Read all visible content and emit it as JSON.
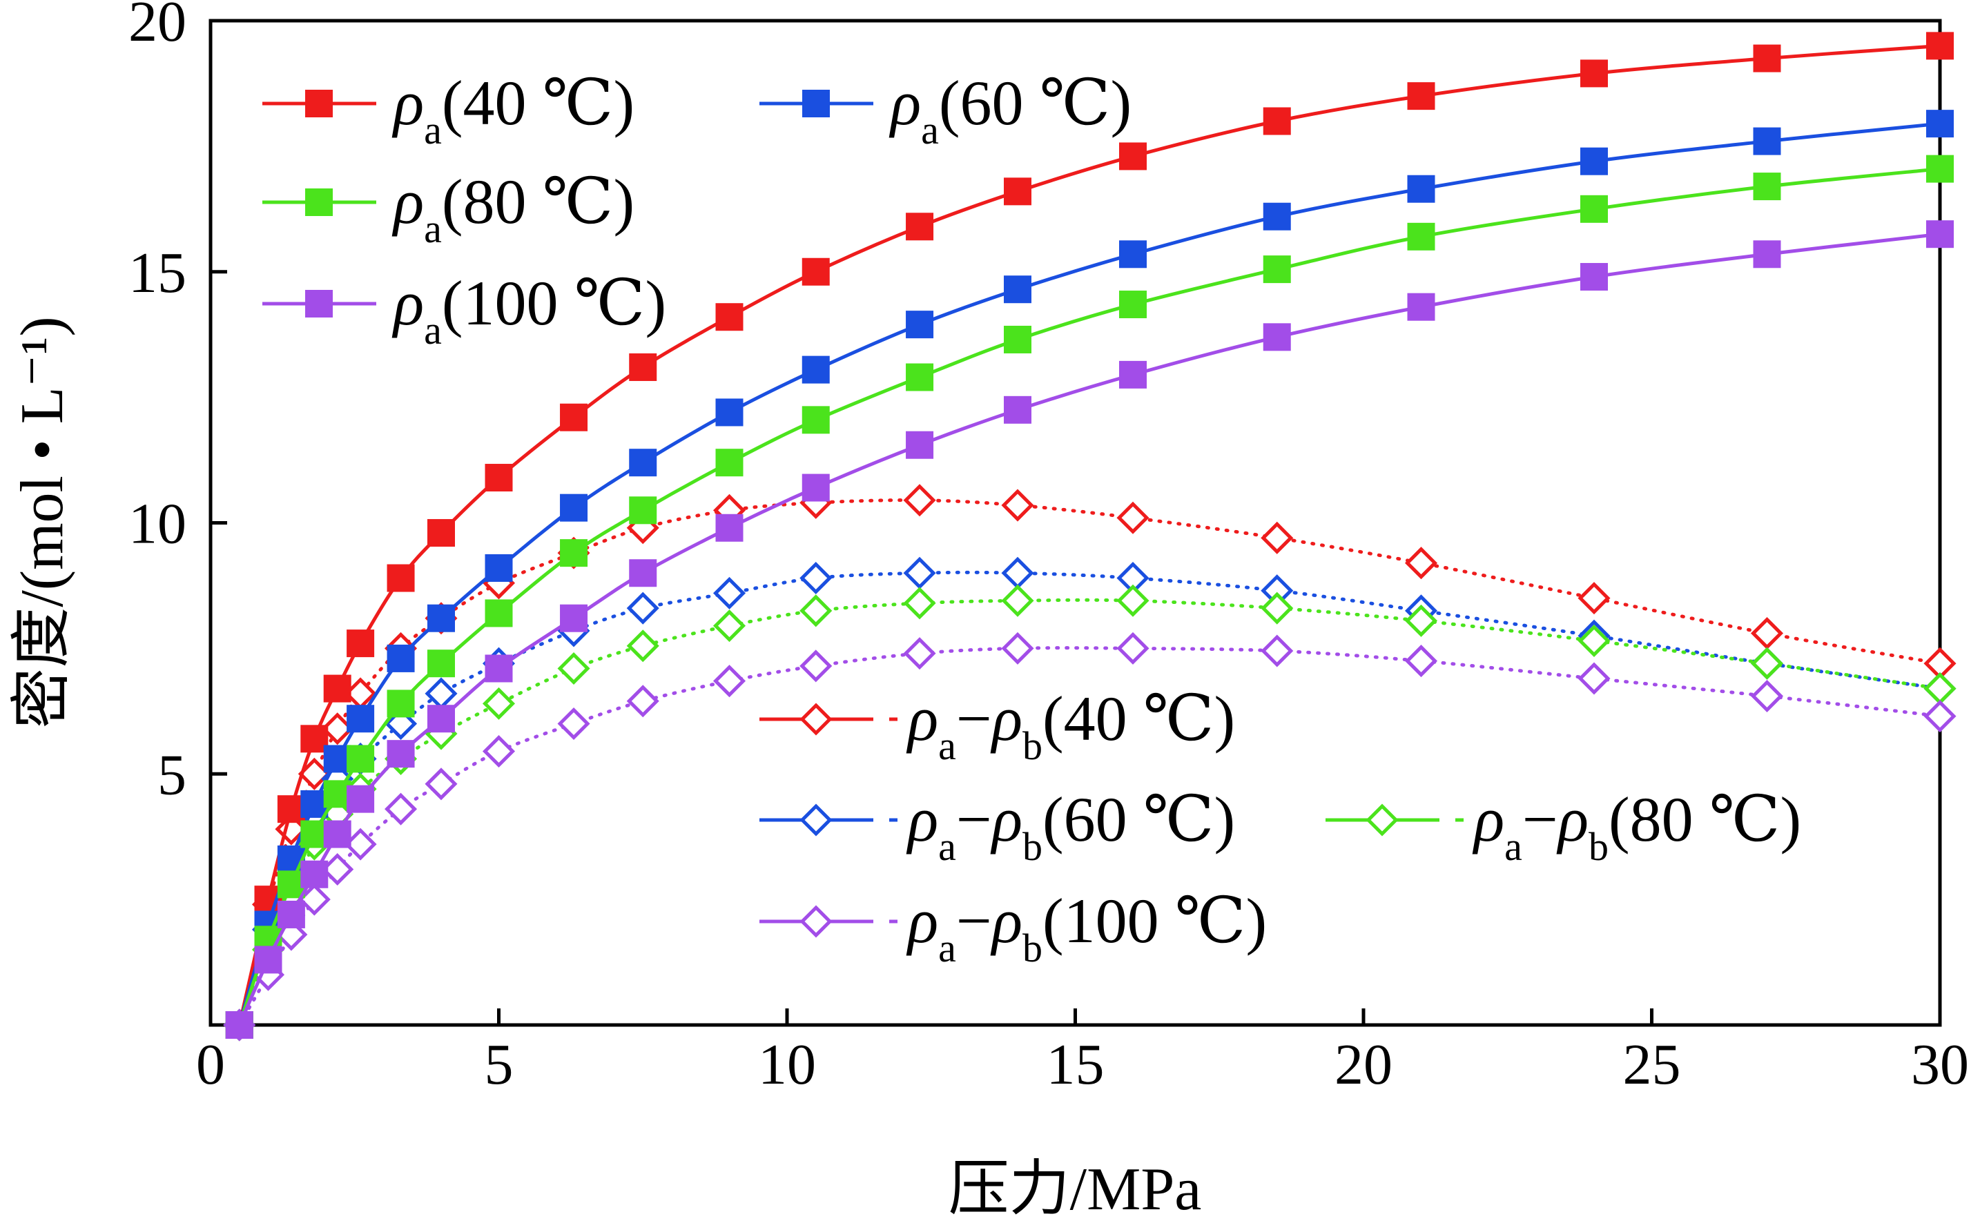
{
  "chart_data": {
    "type": "line",
    "xlabel": "压力/MPa",
    "ylabel": "密度/(mol • L⁻¹)",
    "xlim": [
      0,
      30
    ],
    "ylim": [
      0,
      20
    ],
    "xticks": [
      "0",
      "5",
      "10",
      "15",
      "20",
      "25",
      "30"
    ],
    "yticks": [
      "5",
      "10",
      "15",
      "20"
    ],
    "x": [
      0.5,
      1.0,
      1.4,
      1.8,
      2.2,
      2.6,
      3.3,
      4.0,
      5.0,
      6.3,
      7.5,
      9.0,
      10.5,
      12.3,
      14.0,
      16.0,
      18.5,
      21.0,
      24.0,
      27.0,
      30.0
    ],
    "series": [
      {
        "name": "ρa(40 ℃)",
        "base": "ρ",
        "sub1": "a",
        "suffix": "(40 ℃)",
        "color": "#ee1c1c",
        "style": "solid",
        "marker": "square",
        "values": [
          0.0,
          2.5,
          4.3,
          5.7,
          6.7,
          7.6,
          8.9,
          9.8,
          10.9,
          12.1,
          13.1,
          14.1,
          15.0,
          15.9,
          16.6,
          17.3,
          18.0,
          18.5,
          18.95,
          19.25,
          19.5
        ]
      },
      {
        "name": "ρa(60 ℃)",
        "base": "ρ",
        "sub1": "a",
        "suffix": "(60 ℃)",
        "color": "#1a4fe0",
        "style": "solid",
        "marker": "square",
        "values": [
          0.0,
          2.0,
          3.3,
          4.4,
          5.3,
          6.1,
          7.3,
          8.1,
          9.1,
          10.3,
          11.2,
          12.2,
          13.05,
          13.95,
          14.65,
          15.35,
          16.1,
          16.65,
          17.2,
          17.6,
          17.95
        ]
      },
      {
        "name": "ρa(80 ℃)",
        "base": "ρ",
        "sub1": "a",
        "suffix": "(80 ℃)",
        "color": "#4be31c",
        "style": "solid",
        "marker": "square",
        "values": [
          0.0,
          1.7,
          2.8,
          3.8,
          4.6,
          5.3,
          6.4,
          7.2,
          8.2,
          9.4,
          10.25,
          11.2,
          12.05,
          12.9,
          13.65,
          14.35,
          15.05,
          15.7,
          16.25,
          16.7,
          17.05
        ]
      },
      {
        "name": "ρa(100 ℃)",
        "base": "ρ",
        "sub1": "a",
        "suffix": "(100 ℃)",
        "color": "#a24de8",
        "style": "solid",
        "marker": "square",
        "values": [
          0.0,
          1.3,
          2.2,
          3.0,
          3.8,
          4.5,
          5.4,
          6.1,
          7.1,
          8.1,
          9.0,
          9.9,
          10.7,
          11.55,
          12.25,
          12.95,
          13.7,
          14.3,
          14.9,
          15.35,
          15.75
        ]
      },
      {
        "name": "ρa−ρb(40 ℃)",
        "base": "ρ",
        "sub1": "a",
        "minus": "−",
        "base2": "ρ",
        "sub2": "b",
        "suffix": "(40 ℃)",
        "color": "#ee1c1c",
        "style": "dotted",
        "marker": "diamond",
        "values": [
          0.0,
          2.4,
          3.9,
          5.0,
          5.9,
          6.6,
          7.5,
          8.1,
          8.8,
          9.4,
          9.9,
          10.25,
          10.4,
          10.45,
          10.35,
          10.1,
          9.7,
          9.2,
          8.5,
          7.8,
          7.2
        ]
      },
      {
        "name": "ρa−ρb(60 ℃)",
        "base": "ρ",
        "sub1": "a",
        "minus": "−",
        "base2": "ρ",
        "sub2": "b",
        "suffix": "(60 ℃)",
        "color": "#1a4fe0",
        "style": "dotted",
        "marker": "diamond",
        "values": [
          0.0,
          1.9,
          3.2,
          4.2,
          4.9,
          5.3,
          6.0,
          6.6,
          7.2,
          7.85,
          8.3,
          8.6,
          8.9,
          9.0,
          9.0,
          8.9,
          8.65,
          8.25,
          7.75,
          7.2,
          6.7
        ]
      },
      {
        "name": "ρa−ρb(80 ℃)",
        "base": "ρ",
        "sub1": "a",
        "minus": "−",
        "base2": "ρ",
        "sub2": "b",
        "suffix": "(80 ℃)",
        "color": "#4be31c",
        "style": "dotted",
        "marker": "diamond",
        "values": [
          0.0,
          1.5,
          2.6,
          3.6,
          4.2,
          4.7,
          5.3,
          5.8,
          6.4,
          7.1,
          7.55,
          7.95,
          8.25,
          8.4,
          8.45,
          8.45,
          8.3,
          8.05,
          7.65,
          7.2,
          6.7
        ]
      },
      {
        "name": "ρa−ρb(100 ℃)",
        "base": "ρ",
        "sub1": "a",
        "minus": "−",
        "base2": "ρ",
        "sub2": "b",
        "suffix": "(100 ℃)",
        "color": "#a24de8",
        "style": "dotted",
        "marker": "diamond",
        "values": [
          0.0,
          1.0,
          1.8,
          2.5,
          3.1,
          3.6,
          4.3,
          4.8,
          5.45,
          6.0,
          6.45,
          6.85,
          7.15,
          7.4,
          7.5,
          7.5,
          7.45,
          7.25,
          6.9,
          6.55,
          6.15
        ]
      }
    ]
  }
}
